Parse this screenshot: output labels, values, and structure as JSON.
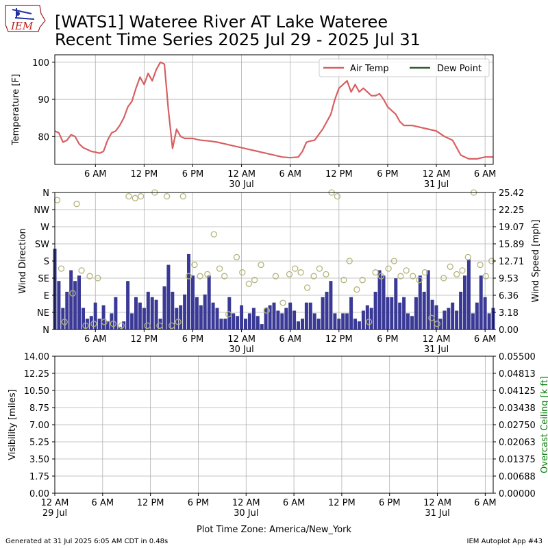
{
  "header": {
    "title_line1": "[WATS1] Wateree River  AT Lake Wateree",
    "title_line2": "Recent Time Series 2025 Jul 29 - 2025 Jul 31",
    "logo_text": "IEM"
  },
  "footer": {
    "generated": "Generated at 31 Jul 2025 6:05 AM CDT in 0.48s",
    "app": "IEM Autoplot App #43",
    "timezone_label": "Plot Time Zone: America/New_York"
  },
  "colors": {
    "temp_line": "#d95f61",
    "dew_line": "#2e5e2e",
    "wind_bar": "#3a3a96",
    "wind_dir_marker": "#b4b47a",
    "ceiling_axis": "#008000",
    "grid": "#b0b0b0"
  },
  "chart_data": [
    {
      "type": "line",
      "ylabel": "Temperature [F]",
      "ylim": [
        72.5,
        102
      ],
      "yticks": [
        80,
        90,
        100
      ],
      "xlim_hours": [
        0,
        54
      ],
      "x_time_ticks": [
        {
          "hour": 5,
          "label": "6 AM",
          "date": ""
        },
        {
          "hour": 11,
          "label": "12 PM",
          "date": ""
        },
        {
          "hour": 17,
          "label": "6 PM",
          "date": ""
        },
        {
          "hour": 23,
          "label": "12 AM",
          "date": "30 Jul"
        },
        {
          "hour": 29,
          "label": "6 AM",
          "date": ""
        },
        {
          "hour": 35,
          "label": "12 PM",
          "date": ""
        },
        {
          "hour": 41,
          "label": "6 PM",
          "date": ""
        },
        {
          "hour": 47,
          "label": "12 AM",
          "date": "31 Jul"
        },
        {
          "hour": 53,
          "label": "6 AM",
          "date": ""
        }
      ],
      "grid": true,
      "legend": {
        "placement": "top-right",
        "entries": [
          "Air Temp",
          "Dew Point"
        ]
      },
      "series": [
        {
          "name": "Air Temp",
          "x": [
            0,
            0.5,
            1,
            1.5,
            2,
            2.5,
            3,
            3.5,
            4,
            4.5,
            5,
            5.5,
            6,
            6.5,
            7,
            7.5,
            8,
            8.5,
            9,
            9.5,
            10,
            10.5,
            11,
            11.5,
            12,
            12.5,
            13,
            13.5,
            14,
            14.5,
            15,
            15.5,
            16,
            16.5,
            17,
            17.5,
            18,
            19,
            20,
            21,
            22,
            23,
            24,
            25,
            26,
            27,
            28,
            29,
            30,
            30.5,
            31,
            31.5,
            32,
            33,
            34,
            34.5,
            35,
            35.5,
            36,
            36.5,
            37,
            37.5,
            38,
            38.5,
            39,
            39.5,
            40,
            40.5,
            41,
            41.5,
            42,
            42.5,
            43,
            43.5,
            44,
            45,
            46,
            47,
            48,
            49,
            49.5,
            50,
            50.5,
            51,
            52,
            53,
            54
          ],
          "y": [
            81.5,
            81,
            78.5,
            79,
            80.5,
            80,
            78,
            77,
            76.5,
            76,
            75.8,
            75.5,
            76,
            79,
            81,
            81.5,
            83,
            85,
            88,
            89.5,
            93,
            96,
            94,
            97,
            95,
            98,
            100,
            99.5,
            87,
            76.8,
            82,
            80,
            79.5,
            79.5,
            79.5,
            79.2,
            79,
            78.8,
            78.5,
            78,
            77.5,
            77,
            76.5,
            76,
            75.5,
            75,
            74.5,
            74.3,
            74.5,
            76,
            78.5,
            78.8,
            79,
            82,
            86,
            90,
            93,
            94,
            95,
            92,
            94,
            92,
            93,
            92,
            91,
            91,
            91.5,
            90,
            88,
            87,
            86,
            84,
            83,
            83,
            83,
            82.5,
            82,
            81.5,
            80,
            79,
            77,
            75,
            74.5,
            74,
            74,
            74.5,
            74.5
          ]
        },
        {
          "name": "Dew Point",
          "x": [],
          "y": []
        }
      ]
    },
    {
      "type": "bar",
      "ylabel": "Wind Direction",
      "y2label": "Wind Speed [mph]",
      "ylim_direction": [
        0,
        360
      ],
      "direction_ticks": [
        {
          "value": 0,
          "label": "N"
        },
        {
          "value": 45,
          "label": "NE"
        },
        {
          "value": 90,
          "label": "E"
        },
        {
          "value": 135,
          "label": "SE"
        },
        {
          "value": 180,
          "label": "S"
        },
        {
          "value": 225,
          "label": "SW"
        },
        {
          "value": 270,
          "label": "W"
        },
        {
          "value": 315,
          "label": "NW"
        },
        {
          "value": 360,
          "label": "N"
        }
      ],
      "ylim_speed": [
        0,
        25.42
      ],
      "speed_ticks": [
        "0.00",
        "3.18",
        "6.36",
        "9.53",
        "12.71",
        "15.89",
        "19.07",
        "22.25",
        "25.42"
      ],
      "xlim_hours": [
        0,
        54
      ],
      "x_time_ticks": [
        {
          "hour": 5,
          "label": "6 AM",
          "date": ""
        },
        {
          "hour": 11,
          "label": "12 PM",
          "date": ""
        },
        {
          "hour": 17,
          "label": "6 PM",
          "date": ""
        },
        {
          "hour": 23,
          "label": "12 AM",
          "date": "30 Jul"
        },
        {
          "hour": 29,
          "label": "6 AM",
          "date": ""
        },
        {
          "hour": 35,
          "label": "12 PM",
          "date": ""
        },
        {
          "hour": 41,
          "label": "6 PM",
          "date": ""
        },
        {
          "hour": 47,
          "label": "12 AM",
          "date": "31 Jul"
        },
        {
          "hour": 53,
          "label": "6 AM",
          "date": ""
        }
      ],
      "grid": true,
      "wind_speed": {
        "x": [
          0,
          0.5,
          1,
          1.5,
          2,
          2.5,
          3,
          3.5,
          4,
          4.5,
          5,
          5.5,
          6,
          6.5,
          7,
          7.5,
          8,
          8.5,
          9,
          9.5,
          10,
          10.5,
          11,
          11.5,
          12,
          12.5,
          13,
          13.5,
          14,
          14.5,
          15,
          15.5,
          16,
          16.5,
          17,
          17.5,
          18,
          18.5,
          19,
          19.5,
          20,
          20.5,
          21,
          21.5,
          22,
          22.5,
          23,
          23.5,
          24,
          24.5,
          25,
          25.5,
          26,
          26.5,
          27,
          27.5,
          28,
          28.5,
          29,
          29.5,
          30,
          30.5,
          31,
          31.5,
          32,
          32.5,
          33,
          33.5,
          34,
          34.5,
          35,
          35.5,
          36,
          36.5,
          37,
          37.5,
          38,
          38.5,
          39,
          39.5,
          40,
          40.5,
          41,
          41.5,
          42,
          42.5,
          43,
          43.5,
          44,
          44.5,
          45,
          45.5,
          46,
          46.5,
          47,
          47.5,
          48,
          48.5,
          49,
          49.5,
          50,
          50.5,
          51,
          51.5,
          52,
          52.5,
          53,
          53.5,
          54
        ],
        "y": [
          15,
          9,
          4,
          7,
          11,
          9,
          10,
          4,
          2,
          2.5,
          5,
          2,
          4.5,
          1.5,
          3,
          6,
          0.5,
          1.5,
          9,
          3,
          6,
          5,
          4,
          7,
          6,
          5.5,
          2,
          8,
          12,
          7,
          4,
          4.5,
          6.5,
          14,
          10,
          6,
          4.5,
          6.5,
          10,
          5,
          4,
          2,
          2,
          6,
          3,
          2.5,
          4.5,
          2,
          3,
          4,
          2.5,
          1,
          4,
          4.5,
          5,
          3.5,
          3,
          4,
          5,
          3.5,
          1.5,
          2,
          5,
          5,
          3,
          2,
          6,
          7,
          9,
          3,
          2,
          3,
          3,
          6,
          2,
          1.5,
          3.5,
          4.5,
          4,
          7,
          11,
          10,
          6,
          6,
          9.5,
          5,
          6,
          3,
          2.5,
          6,
          10,
          7,
          11,
          5.5,
          4.5,
          2,
          3.5,
          4,
          5,
          3.5,
          7,
          10,
          13,
          3,
          5,
          10,
          6,
          3,
          4
        ]
      },
      "wind_direction": {
        "x": [
          0.3,
          0.8,
          1.2,
          2.2,
          2.7,
          3.3,
          3.8,
          4.3,
          4.8,
          5.3,
          6.1,
          7.2,
          8.2,
          9.1,
          9.9,
          10.6,
          11.4,
          12.3,
          12.9,
          13.8,
          14.4,
          15.2,
          15.8,
          16.5,
          17.2,
          17.9,
          18.8,
          19.6,
          20.3,
          20.9,
          21.4,
          22.4,
          23.1,
          23.9,
          24.6,
          25.4,
          26.1,
          27.2,
          28.1,
          28.9,
          29.6,
          30.3,
          31.1,
          31.9,
          32.6,
          33.4,
          34.1,
          34.8,
          35.6,
          36.3,
          37.2,
          37.9,
          38.7,
          39.5,
          40.2,
          41.1,
          41.8,
          42.6,
          43.3,
          44.1,
          44.9,
          45.6,
          46.4,
          47.1,
          47.9,
          48.7,
          49.5,
          50.2,
          50.9,
          51.6,
          52.4,
          53.1,
          53.8
        ],
        "y": [
          340,
          160,
          20,
          95,
          330,
          155,
          10,
          140,
          15,
          135,
          20,
          15,
          10,
          350,
          345,
          350,
          10,
          360,
          10,
          350,
          10,
          20,
          350,
          140,
          170,
          140,
          145,
          250,
          160,
          140,
          40,
          190,
          150,
          120,
          130,
          170,
          50,
          140,
          70,
          145,
          160,
          150,
          110,
          140,
          160,
          145,
          360,
          350,
          130,
          180,
          105,
          130,
          20,
          150,
          140,
          160,
          180,
          140,
          155,
          140,
          130,
          150,
          30,
          15,
          135,
          165,
          145,
          155,
          190,
          360,
          170,
          140,
          180
        ]
      }
    },
    {
      "type": "line",
      "ylabel": "Visibility [miles]",
      "y2label": "Overcast Ceiling [k ft]",
      "ylim": [
        0,
        14
      ],
      "yticks": [
        "0.00",
        "1.75",
        "3.50",
        "5.25",
        "7.00",
        "8.75",
        "10.50",
        "12.25",
        "14.00"
      ],
      "ylim2": [
        0,
        0.055
      ],
      "y2ticks": [
        "0.00000",
        "0.00688",
        "0.01375",
        "0.02063",
        "0.02750",
        "0.03438",
        "0.04125",
        "0.04813",
        "0.05500"
      ],
      "xlim_hours": [
        -1,
        54
      ],
      "x_time_ticks": [
        {
          "hour": -1,
          "label": "12 AM",
          "date": "29 Jul"
        },
        {
          "hour": 5,
          "label": "6 AM",
          "date": ""
        },
        {
          "hour": 11,
          "label": "12 PM",
          "date": ""
        },
        {
          "hour": 17,
          "label": "6 PM",
          "date": ""
        },
        {
          "hour": 23,
          "label": "12 AM",
          "date": "30 Jul"
        },
        {
          "hour": 29,
          "label": "6 AM",
          "date": ""
        },
        {
          "hour": 35,
          "label": "12 PM",
          "date": ""
        },
        {
          "hour": 41,
          "label": "6 PM",
          "date": ""
        },
        {
          "hour": 47,
          "label": "12 AM",
          "date": "31 Jul"
        },
        {
          "hour": 53,
          "label": "6 AM",
          "date": ""
        }
      ],
      "grid": true,
      "series": []
    }
  ]
}
